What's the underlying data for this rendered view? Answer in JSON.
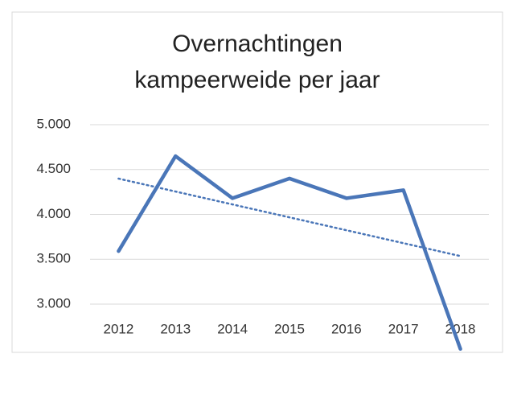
{
  "chart_data": {
    "type": "line",
    "title": [
      "Overnachtingen",
      "kampeerweide per jaar"
    ],
    "categories": [
      "2012",
      "2013",
      "2014",
      "2015",
      "2016",
      "2017",
      "2018"
    ],
    "series": [
      {
        "color": "#4a76b8",
        "values": [
          3590,
          4650,
          4180,
          4400,
          4180,
          4270,
          2500
        ]
      }
    ],
    "trendline": "linear",
    "ylim": [
      3000,
      5000
    ],
    "yticks": [
      {
        "value": 3000,
        "label": "3.000"
      },
      {
        "value": 3500,
        "label": "3.500"
      },
      {
        "value": 4000,
        "label": "4.000"
      },
      {
        "value": 4500,
        "label": "4.500"
      },
      {
        "value": 5000,
        "label": "5.000"
      }
    ],
    "grid": true
  }
}
